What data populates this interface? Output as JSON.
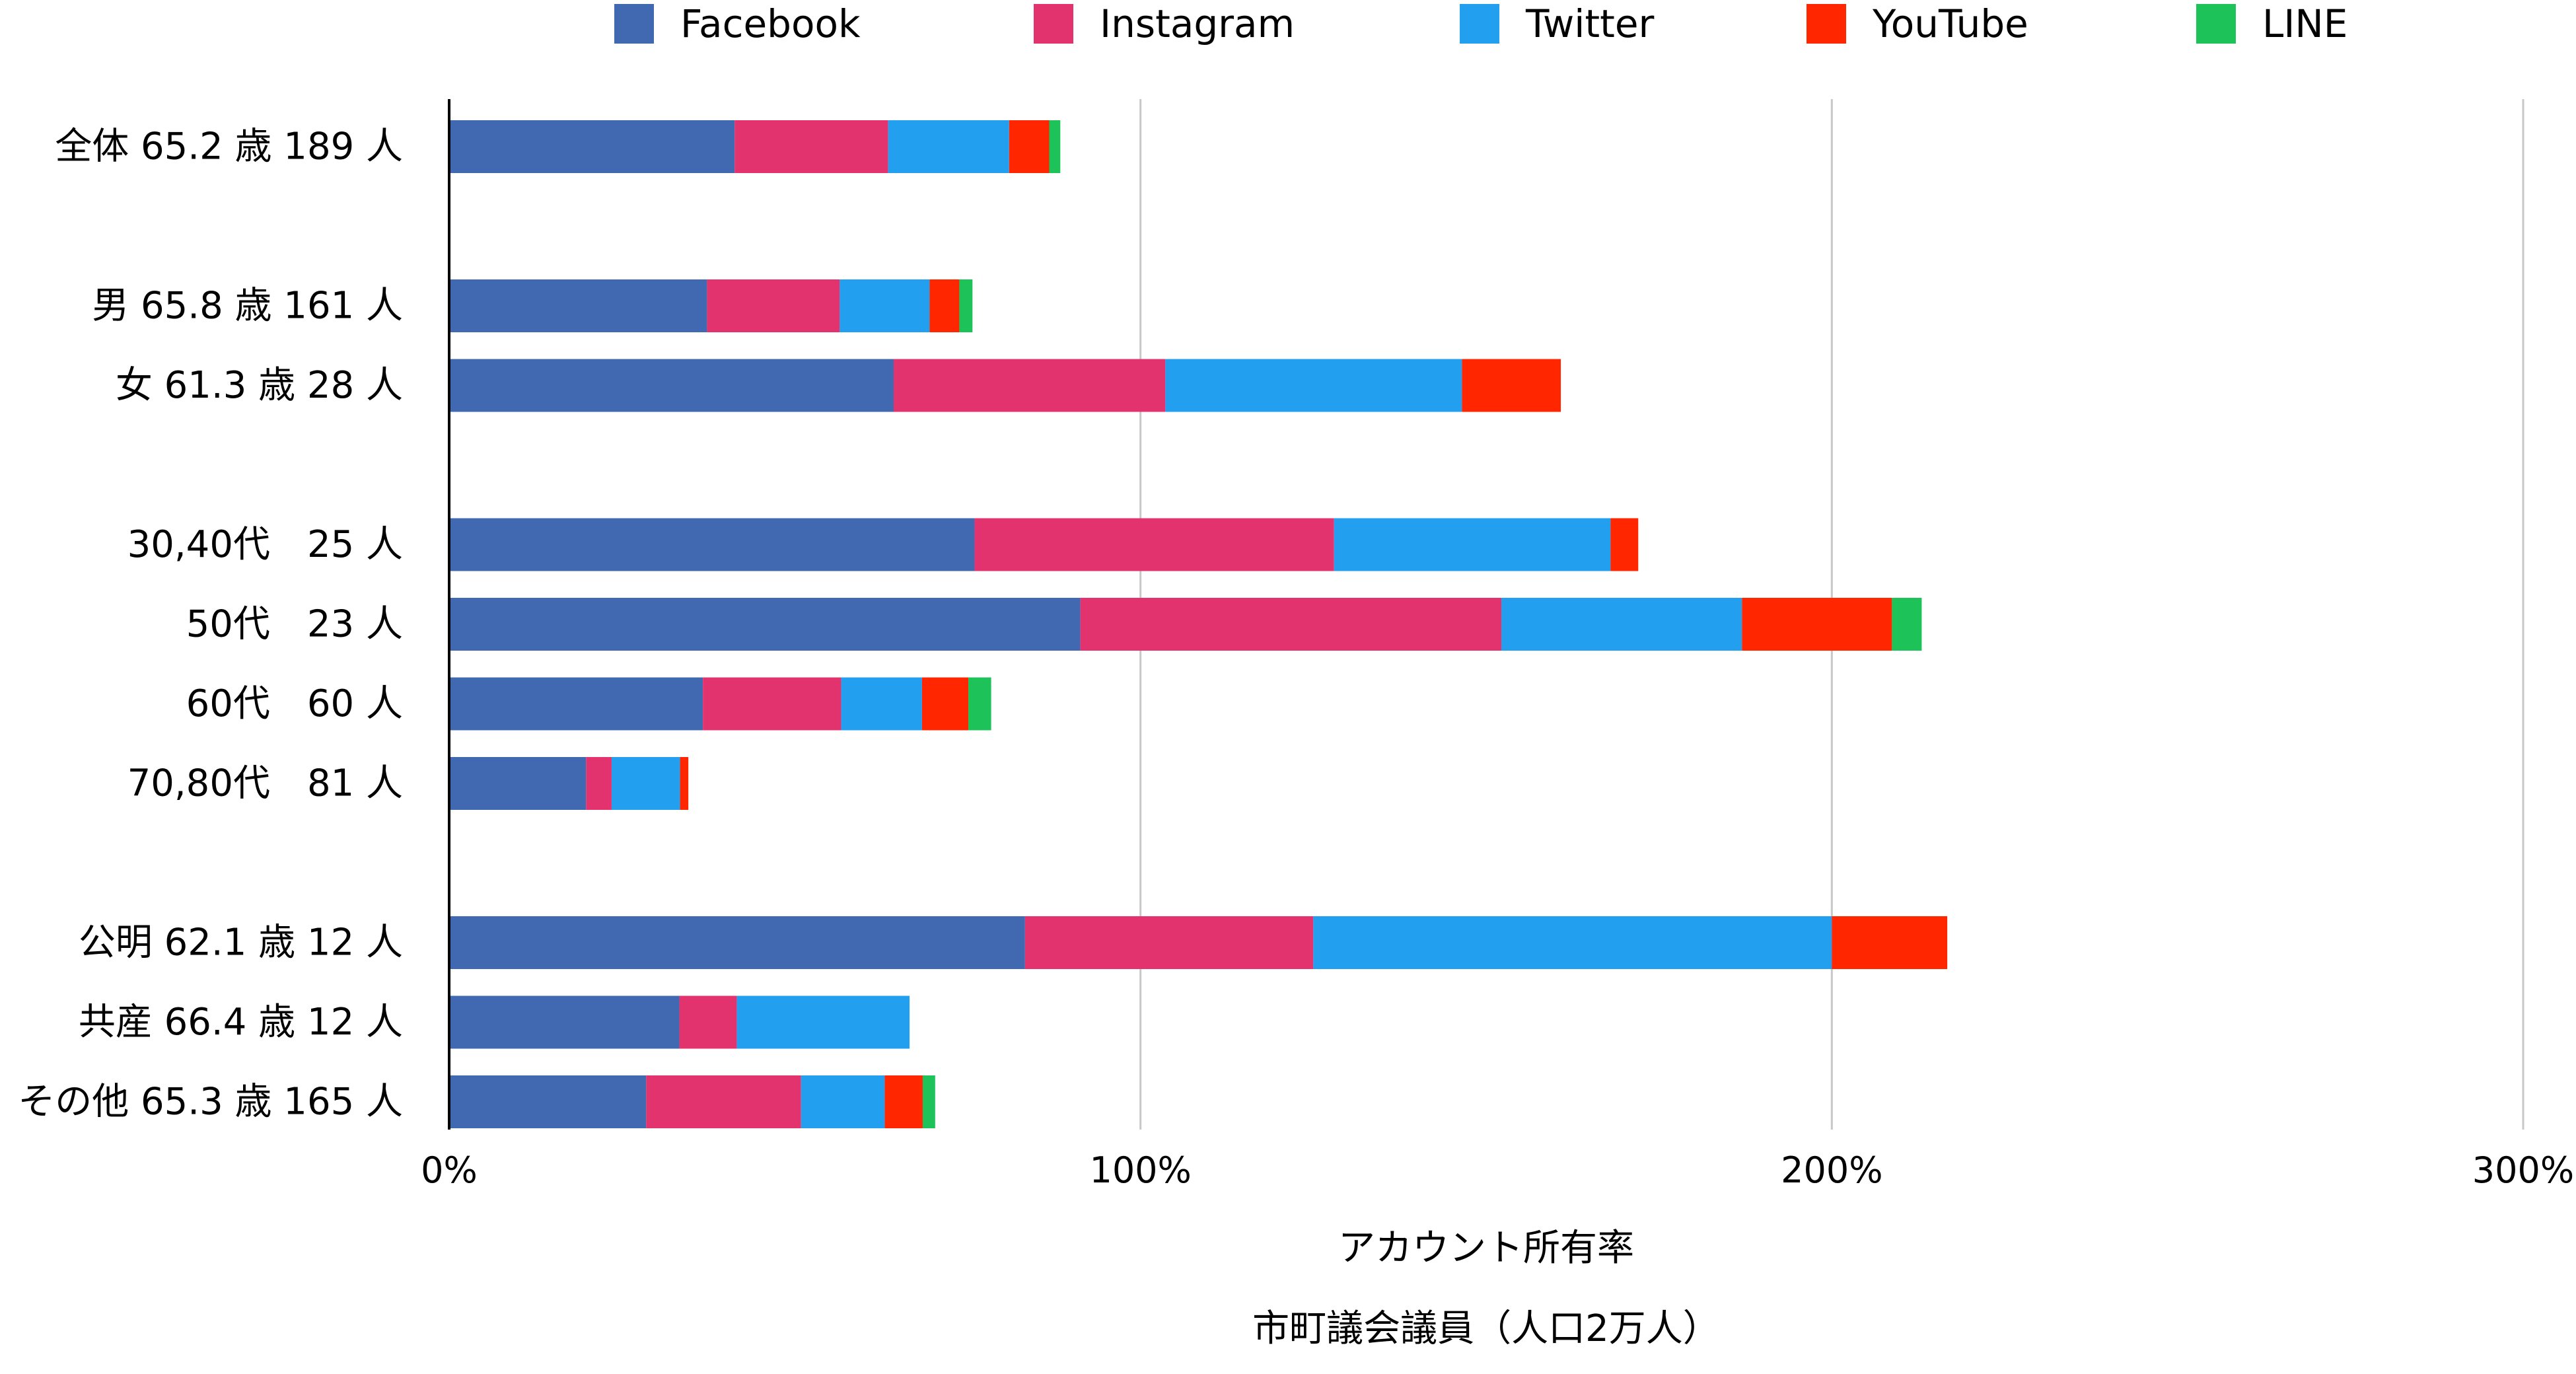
{
  "chart_data": {
    "type": "bar",
    "orientation": "horizontal",
    "stacked": true,
    "xlabel": "アカウント所有率",
    "caption": "市町議会議員（人口2万人）",
    "xlim": [
      0,
      300
    ],
    "x_ticks": [
      "0%",
      "100%",
      "200%",
      "300%"
    ],
    "grid": true,
    "legend_position": "top",
    "categories": [
      "全体 65.2 歳 189 人",
      "男 65.8 歳 161 人",
      "女 61.3 歳 28 人",
      "30,40代　25 人",
      "50代　23 人",
      "60代　60 人",
      "70,80代　81 人",
      "公明 62.1 歳 12 人",
      "共産 66.4 歳 12 人",
      "その他 65.3 歳 165 人"
    ],
    "category_rows": [
      0,
      2,
      3,
      5,
      6,
      7,
      8,
      10,
      11,
      12
    ],
    "series": [
      {
        "name": "Facebook",
        "color": "#4169B2",
        "values": [
          41.3,
          37.3,
          64.3,
          76.0,
          91.3,
          36.7,
          19.8,
          83.3,
          33.3,
          28.5
        ]
      },
      {
        "name": "Instagram",
        "color": "#E3336F",
        "values": [
          22.2,
          19.2,
          39.3,
          52.0,
          60.9,
          20.0,
          3.7,
          41.7,
          8.3,
          22.4
        ]
      },
      {
        "name": "Twitter",
        "color": "#229FEF",
        "values": [
          17.5,
          13.0,
          42.9,
          40.0,
          34.8,
          11.7,
          9.9,
          75.0,
          25.0,
          12.1
        ]
      },
      {
        "name": "YouTube",
        "color": "#FF2600",
        "values": [
          5.8,
          4.3,
          14.3,
          4.0,
          21.7,
          6.7,
          1.2,
          16.7,
          0.0,
          5.5
        ]
      },
      {
        "name": "LINE",
        "color": "#1DC359",
        "values": [
          1.6,
          1.9,
          0.0,
          0.0,
          4.3,
          3.3,
          0.0,
          0.0,
          0.0,
          1.8
        ]
      }
    ]
  }
}
